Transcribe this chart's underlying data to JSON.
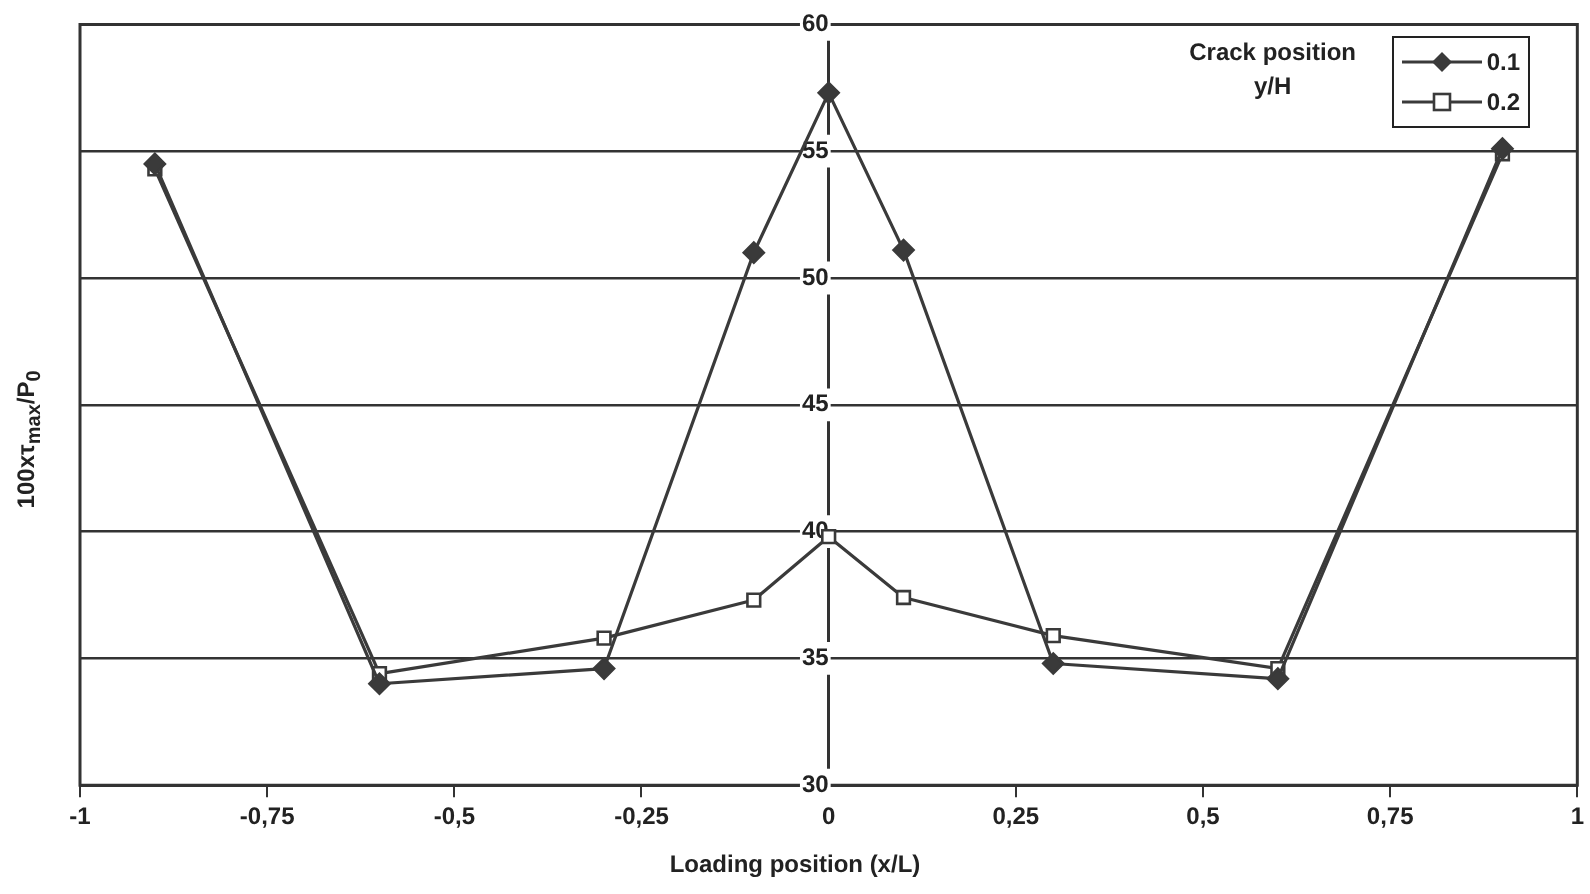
{
  "chart_data": {
    "type": "line",
    "xlabel": "Loading position (x/L)",
    "ylabel": "100xτ$_{max}$/P$_{0}$",
    "legend_title": "Crack position y/H",
    "xlim": [
      -1,
      1
    ],
    "xticks": [
      -1,
      {
        "value": -0.75,
        "label": "-0,75"
      },
      {
        "value": -0.5,
        "label": "-0,5"
      },
      {
        "value": -0.25,
        "label": "-0,25"
      },
      0,
      {
        "value": 0.25,
        "label": "0,25"
      },
      {
        "value": 0.5,
        "label": "0,5"
      },
      {
        "value": 0.75,
        "label": "0,75"
      },
      1
    ],
    "ylim": [
      30,
      60
    ],
    "yticks": [
      30,
      35,
      40,
      45,
      50,
      55,
      60
    ],
    "grid": "y",
    "legend": "top right",
    "line_style": "solid",
    "series": [
      {
        "name": "0.1",
        "color": "#3a3a3a",
        "marker": "diamond",
        "x": [
          -0.9,
          -0.6,
          -0.3,
          -0.1,
          0,
          0.1,
          0.3,
          0.6,
          0.9
        ],
        "values": [
          54.5,
          34.0,
          34.6,
          51.0,
          57.3,
          51.1,
          34.8,
          34.2,
          55.1
        ]
      },
      {
        "name": "0.2",
        "color": "#3a3a3a",
        "marker": "square",
        "x": [
          -0.9,
          -0.6,
          -0.3,
          -0.1,
          0,
          0.1,
          0.3,
          0.6,
          0.9
        ],
        "values": [
          54.3,
          34.4,
          35.8,
          37.3,
          39.8,
          37.4,
          35.9,
          34.6,
          54.9
        ]
      }
    ]
  }
}
